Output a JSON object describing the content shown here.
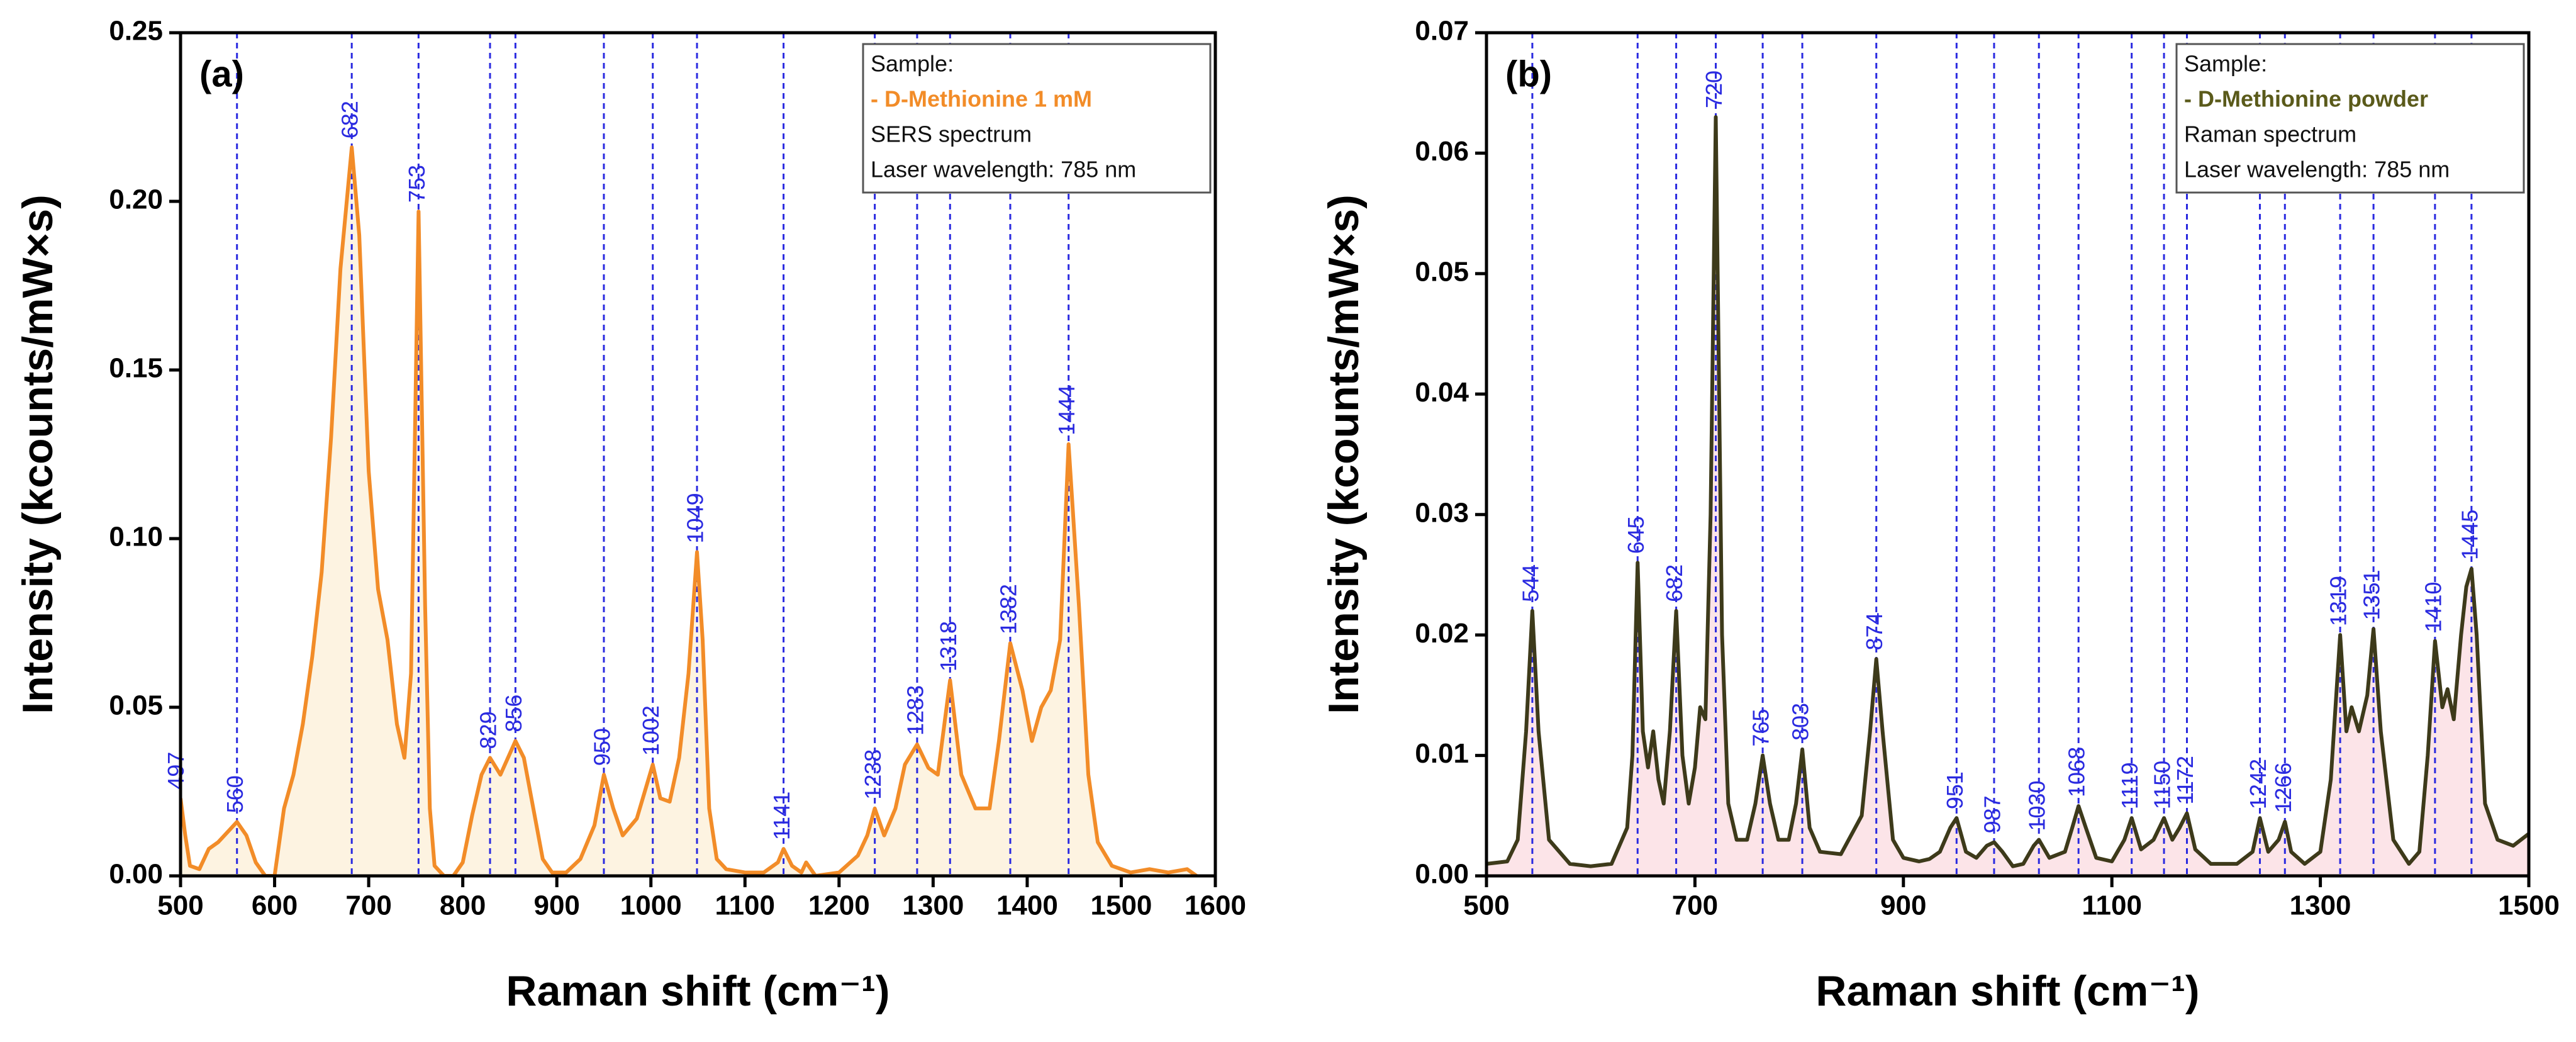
{
  "chart_data": [
    {
      "type": "line",
      "panel_label": "(a)",
      "xlabel": "Raman shift (cm⁻¹)",
      "ylabel": "Intensity (kcounts/mW×s)",
      "xlim": [
        500,
        1600
      ],
      "xticks": [
        500,
        600,
        700,
        800,
        900,
        1000,
        1100,
        1200,
        1300,
        1400,
        1500,
        1600
      ],
      "ylim": [
        0,
        0.25
      ],
      "yticks": [
        {
          "value": 0,
          "label": "0.00"
        },
        {
          "value": 0.05,
          "label": "0.05"
        },
        {
          "value": 0.1,
          "label": "0.10"
        },
        {
          "value": 0.15,
          "label": "0.15"
        },
        {
          "value": 0.2,
          "label": "0.20"
        },
        {
          "value": 0.25,
          "label": "0.25"
        }
      ],
      "color": "#f28c28",
      "fill_color": "#fdf3e1",
      "peak_color": "#2a2ae0",
      "legend_lines": [
        "Sample:",
        "- D-Methionine 1 mM",
        "SERS spectrum",
        "Laser wavelength: 785 nm"
      ],
      "legend_highlight_color": "#f28c28",
      "peaks": [
        497,
        560,
        682,
        753,
        829,
        856,
        950,
        1002,
        1049,
        1141,
        1238,
        1283,
        1318,
        1382,
        1444
      ],
      "x": [
        500,
        505,
        510,
        520,
        530,
        540,
        550,
        560,
        570,
        580,
        590,
        600,
        610,
        620,
        630,
        640,
        650,
        660,
        670,
        682,
        690,
        700,
        710,
        720,
        730,
        738,
        745,
        753,
        760,
        765,
        770,
        780,
        790,
        800,
        810,
        820,
        829,
        840,
        856,
        865,
        875,
        885,
        895,
        910,
        925,
        940,
        950,
        960,
        970,
        985,
        1002,
        1010,
        1020,
        1030,
        1040,
        1049,
        1055,
        1062,
        1070,
        1080,
        1100,
        1120,
        1135,
        1141,
        1150,
        1160,
        1165,
        1175,
        1200,
        1220,
        1230,
        1238,
        1248,
        1260,
        1270,
        1283,
        1295,
        1305,
        1318,
        1330,
        1345,
        1360,
        1370,
        1382,
        1395,
        1405,
        1415,
        1425,
        1435,
        1444,
        1455,
        1465,
        1475,
        1490,
        1510,
        1530,
        1550,
        1570,
        1580
      ],
      "values": [
        0.023,
        0.012,
        0.003,
        0.002,
        0.008,
        0.01,
        0.013,
        0.016,
        0.012,
        0.004,
        0.0,
        0.0,
        0.02,
        0.03,
        0.045,
        0.065,
        0.09,
        0.13,
        0.18,
        0.216,
        0.19,
        0.12,
        0.085,
        0.07,
        0.045,
        0.035,
        0.06,
        0.197,
        0.08,
        0.02,
        0.003,
        0.0,
        0.0,
        0.004,
        0.018,
        0.03,
        0.035,
        0.03,
        0.04,
        0.035,
        0.02,
        0.005,
        0.001,
        0.001,
        0.005,
        0.015,
        0.03,
        0.02,
        0.012,
        0.017,
        0.033,
        0.023,
        0.022,
        0.035,
        0.06,
        0.096,
        0.07,
        0.02,
        0.005,
        0.002,
        0.001,
        0.001,
        0.004,
        0.008,
        0.003,
        0.001,
        0.004,
        0.0,
        0.001,
        0.006,
        0.012,
        0.02,
        0.012,
        0.02,
        0.033,
        0.039,
        0.032,
        0.03,
        0.058,
        0.03,
        0.02,
        0.02,
        0.04,
        0.069,
        0.055,
        0.04,
        0.05,
        0.055,
        0.07,
        0.128,
        0.08,
        0.03,
        0.01,
        0.003,
        0.001,
        0.002,
        0.001,
        0.002,
        0.0
      ]
    },
    {
      "type": "line",
      "panel_label": "(b)",
      "xlabel": "Raman shift (cm⁻¹)",
      "ylabel": "Intensity (kcounts/mW×s)",
      "xlim": [
        500,
        1500
      ],
      "xticks": [
        500,
        700,
        900,
        1100,
        1300,
        1500
      ],
      "ylim": [
        0,
        0.07
      ],
      "yticks": [
        {
          "value": 0,
          "label": "0.00"
        },
        0.01,
        0.02,
        0.03,
        0.04,
        0.05,
        0.06,
        0.07
      ],
      "color": "#3d3a1a",
      "fill_color": "#fce4e8",
      "peak_color": "#2a2ae0",
      "legend_lines": [
        "Sample:",
        "- D-Methionine powder",
        "Raman spectrum",
        "Laser wavelength: 785 nm"
      ],
      "legend_highlight_color": "#5a5a1a",
      "peaks": [
        544,
        645,
        682,
        720,
        765,
        803,
        874,
        951,
        987,
        1030,
        1068,
        1119,
        1150,
        1172,
        1242,
        1266,
        1319,
        1351,
        1410,
        1445
      ],
      "x": [
        500,
        520,
        530,
        538,
        544,
        550,
        560,
        580,
        600,
        620,
        635,
        640,
        645,
        650,
        655,
        660,
        665,
        670,
        676,
        682,
        688,
        694,
        700,
        705,
        710,
        715,
        720,
        726,
        732,
        740,
        750,
        758,
        765,
        772,
        780,
        790,
        797,
        803,
        810,
        820,
        840,
        860,
        868,
        874,
        880,
        890,
        900,
        915,
        925,
        935,
        945,
        951,
        960,
        970,
        980,
        987,
        995,
        1005,
        1015,
        1025,
        1030,
        1040,
        1055,
        1062,
        1068,
        1075,
        1085,
        1100,
        1112,
        1119,
        1128,
        1140,
        1150,
        1158,
        1165,
        1172,
        1180,
        1195,
        1220,
        1235,
        1242,
        1250,
        1260,
        1266,
        1272,
        1285,
        1300,
        1310,
        1319,
        1325,
        1330,
        1337,
        1345,
        1351,
        1358,
        1370,
        1385,
        1395,
        1403,
        1410,
        1417,
        1422,
        1428,
        1435,
        1440,
        1445,
        1450,
        1458,
        1470,
        1485,
        1500
      ],
      "values": [
        0.001,
        0.0012,
        0.003,
        0.012,
        0.022,
        0.012,
        0.003,
        0.001,
        0.0008,
        0.001,
        0.004,
        0.01,
        0.026,
        0.012,
        0.009,
        0.012,
        0.008,
        0.006,
        0.012,
        0.022,
        0.01,
        0.006,
        0.009,
        0.014,
        0.013,
        0.03,
        0.063,
        0.02,
        0.006,
        0.003,
        0.003,
        0.006,
        0.01,
        0.006,
        0.003,
        0.003,
        0.006,
        0.0105,
        0.004,
        0.002,
        0.0018,
        0.005,
        0.012,
        0.018,
        0.012,
        0.003,
        0.0015,
        0.0012,
        0.0014,
        0.002,
        0.004,
        0.0048,
        0.002,
        0.0015,
        0.0025,
        0.0028,
        0.002,
        0.0008,
        0.001,
        0.0025,
        0.003,
        0.0015,
        0.002,
        0.004,
        0.0058,
        0.004,
        0.0015,
        0.0012,
        0.003,
        0.0048,
        0.0022,
        0.003,
        0.0048,
        0.003,
        0.004,
        0.0052,
        0.0022,
        0.001,
        0.001,
        0.002,
        0.0048,
        0.002,
        0.003,
        0.0045,
        0.002,
        0.001,
        0.002,
        0.008,
        0.02,
        0.012,
        0.014,
        0.012,
        0.015,
        0.0205,
        0.012,
        0.003,
        0.001,
        0.002,
        0.01,
        0.0195,
        0.014,
        0.0155,
        0.013,
        0.02,
        0.024,
        0.0255,
        0.02,
        0.006,
        0.003,
        0.0025,
        0.0035
      ]
    }
  ]
}
